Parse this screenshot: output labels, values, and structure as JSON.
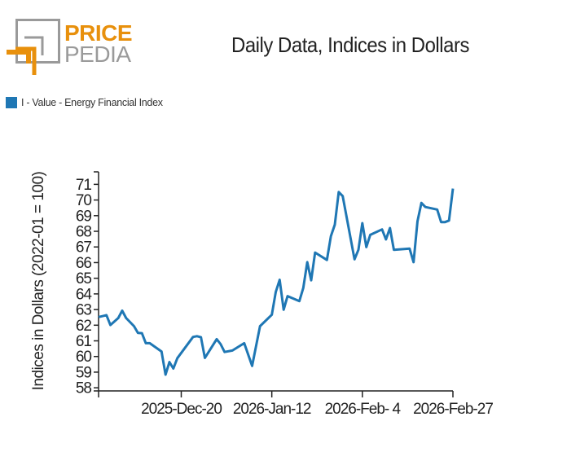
{
  "logo": {
    "text_top": "PRICE",
    "text_bottom": "PEDIA",
    "colors": {
      "orange": "#e8900c",
      "gray": "#9a9a9a"
    }
  },
  "chart_data": {
    "type": "line",
    "title": "Daily Data, Indices in Dollars",
    "xlabel": "",
    "ylabel": "Indices in Dollars (2022-01 = 100)",
    "ylim": [
      57.8,
      71.8
    ],
    "xlim": [
      "2025-11-29",
      "2026-02-27"
    ],
    "yticks": [
      58,
      59,
      60,
      61,
      62,
      63,
      64,
      65,
      66,
      67,
      68,
      69,
      70,
      71
    ],
    "xticks": [
      {
        "date": "2025-11-29",
        "label": ""
      },
      {
        "date": "2025-12-20",
        "label": "2025-Dec-20"
      },
      {
        "date": "2026-01-12",
        "label": "2026-Jan-12"
      },
      {
        "date": "2026-02-04",
        "label": "2026-Feb- 4"
      },
      {
        "date": "2026-02-27",
        "label": "2026-Feb-27"
      }
    ],
    "grid": false,
    "legend": "top-left",
    "series": [
      {
        "name": "I - Value - Energy Financial Index",
        "color": "#1f77b4",
        "x": [
          "2025-11-29",
          "2025-12-01",
          "2025-12-02",
          "2025-12-04",
          "2025-12-05",
          "2025-12-06",
          "2025-12-08",
          "2025-12-09",
          "2025-12-10",
          "2025-12-11",
          "2025-12-12",
          "2025-12-15",
          "2025-12-16",
          "2025-12-17",
          "2025-12-18",
          "2025-12-19",
          "2025-12-23",
          "2025-12-24",
          "2025-12-25",
          "2025-12-26",
          "2025-12-29",
          "2025-12-30",
          "2025-12-31",
          "2026-01-02",
          "2026-01-05",
          "2026-01-07",
          "2026-01-09",
          "2026-01-12",
          "2026-01-13",
          "2026-01-14",
          "2026-01-15",
          "2026-01-16",
          "2026-01-19",
          "2026-01-20",
          "2026-01-21",
          "2026-01-22",
          "2026-01-23",
          "2026-01-26",
          "2026-01-27",
          "2026-01-28",
          "2026-01-29",
          "2026-01-30",
          "2026-02-02",
          "2026-02-03",
          "2026-02-04",
          "2026-02-05",
          "2026-02-06",
          "2026-02-09",
          "2026-02-10",
          "2026-02-11",
          "2026-02-12",
          "2026-02-16",
          "2026-02-17",
          "2026-02-18",
          "2026-02-19",
          "2026-02-20",
          "2026-02-23",
          "2026-02-24",
          "2026-02-25",
          "2026-02-26",
          "2026-02-27"
        ],
        "values": [
          62.52,
          62.64,
          62.01,
          62.46,
          62.93,
          62.46,
          61.94,
          61.51,
          61.49,
          60.85,
          60.85,
          60.32,
          58.84,
          59.64,
          59.23,
          59.89,
          61.25,
          61.3,
          61.23,
          59.91,
          61.11,
          60.79,
          60.29,
          60.38,
          60.85,
          59.4,
          61.94,
          62.67,
          64.12,
          64.9,
          62.99,
          63.86,
          63.54,
          64.38,
          66.03,
          64.87,
          66.64,
          66.17,
          67.69,
          68.42,
          70.51,
          70.25,
          66.21,
          66.82,
          68.52,
          66.99,
          67.77,
          68.12,
          67.48,
          68.21,
          66.82,
          66.89,
          66.03,
          68.64,
          69.81,
          69.55,
          69.39,
          68.59,
          68.59,
          68.69,
          70.73
        ]
      }
    ]
  }
}
